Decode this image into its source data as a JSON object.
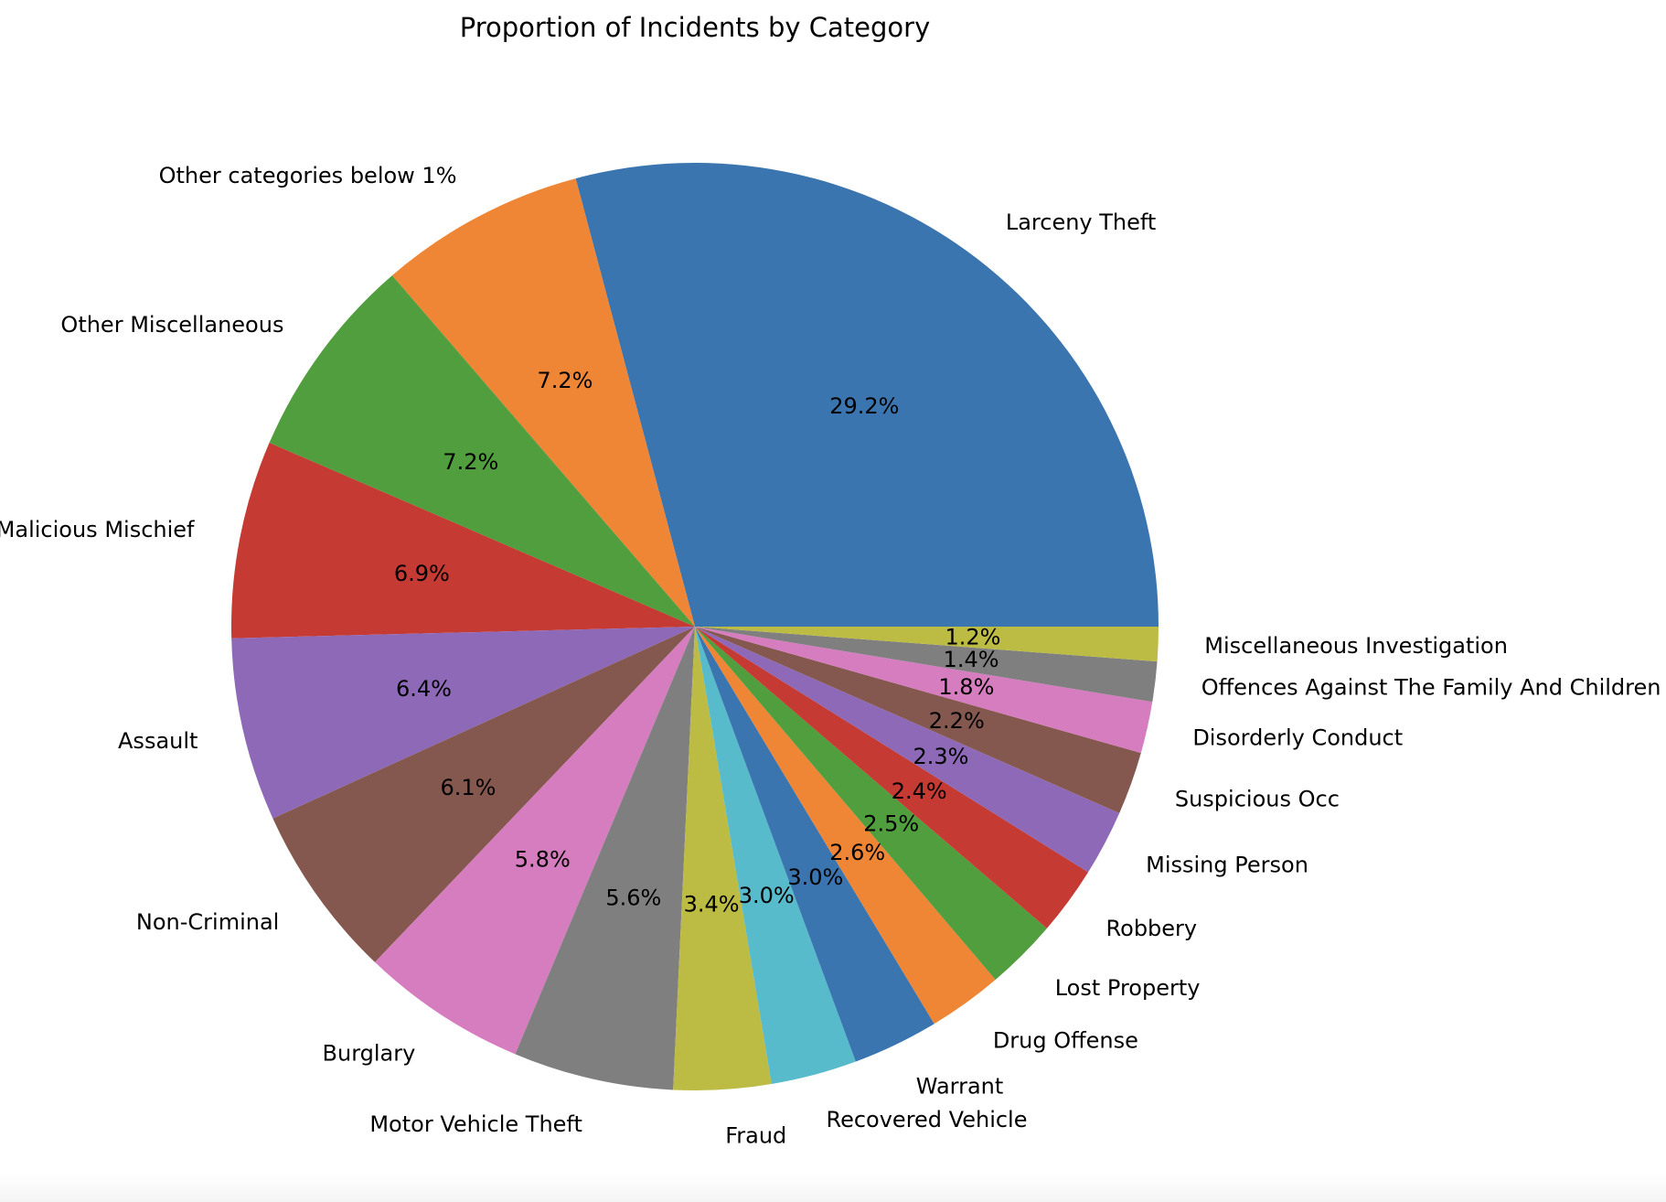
{
  "chart_data": {
    "type": "pie",
    "title": "Proportion of Incidents by Category",
    "start_angle_deg": 0,
    "direction": "counterclockwise",
    "slices": [
      {
        "label": "Larceny Theft",
        "value": 29.2,
        "pct_label": "29.2%",
        "color": "#3b75af"
      },
      {
        "label": "Other categories below 1%",
        "value": 7.2,
        "pct_label": "7.2%",
        "color": "#ef8636"
      },
      {
        "label": "Other Miscellaneous",
        "value": 7.2,
        "pct_label": "7.2%",
        "color": "#519e3e"
      },
      {
        "label": "Malicious Mischief",
        "value": 6.9,
        "pct_label": "6.9%",
        "color": "#c53a32"
      },
      {
        "label": "Assault",
        "value": 6.4,
        "pct_label": "6.4%",
        "color": "#8d69b8"
      },
      {
        "label": "Non-Criminal",
        "value": 6.1,
        "pct_label": "6.1%",
        "color": "#84584e"
      },
      {
        "label": "Burglary",
        "value": 5.8,
        "pct_label": "5.8%",
        "color": "#d57dbf"
      },
      {
        "label": "Motor Vehicle Theft",
        "value": 5.6,
        "pct_label": "5.6%",
        "color": "#7f7f7f"
      },
      {
        "label": "Fraud",
        "value": 3.4,
        "pct_label": "3.4%",
        "color": "#bcbc45"
      },
      {
        "label": "Recovered Vehicle",
        "value": 3.0,
        "pct_label": "3.0%",
        "color": "#58bbcc"
      },
      {
        "label": "Warrant",
        "value": 3.0,
        "pct_label": "3.0%",
        "color": "#3b75af"
      },
      {
        "label": "Drug Offense",
        "value": 2.6,
        "pct_label": "2.6%",
        "color": "#ef8636"
      },
      {
        "label": "Lost Property",
        "value": 2.5,
        "pct_label": "2.5%",
        "color": "#519e3e"
      },
      {
        "label": "Robbery",
        "value": 2.4,
        "pct_label": "2.4%",
        "color": "#c53a32"
      },
      {
        "label": "Missing Person",
        "value": 2.3,
        "pct_label": "2.3%",
        "color": "#8d69b8"
      },
      {
        "label": "Suspicious Occ",
        "value": 2.2,
        "pct_label": "2.2%",
        "color": "#84584e"
      },
      {
        "label": "Disorderly Conduct",
        "value": 1.8,
        "pct_label": "1.8%",
        "color": "#d57dbf"
      },
      {
        "label": "Offences Against The Family And Children",
        "value": 1.4,
        "pct_label": "1.4%",
        "color": "#7f7f7f"
      },
      {
        "label": "Miscellaneous Investigation",
        "value": 1.2,
        "pct_label": "1.2%",
        "color": "#bcbc45"
      }
    ]
  }
}
